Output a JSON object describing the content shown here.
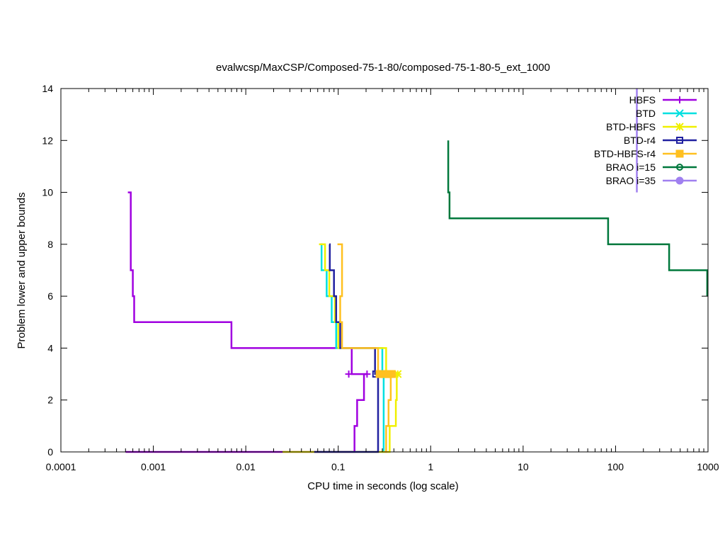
{
  "chart_data": {
    "type": "line",
    "title": "evalwcsp/MaxCSP/Composed-75-1-80/composed-75-1-80-5_ext_1000",
    "xlabel": "CPU time in seconds (log scale)",
    "ylabel": "Problem lower and upper bounds",
    "xscale": "log",
    "xlim": [
      0.0001,
      1000
    ],
    "ylim": [
      0,
      14
    ],
    "x_ticks": [
      {
        "value": 0.0001,
        "label": "0.0001"
      },
      {
        "value": 0.001,
        "label": "0.001"
      },
      {
        "value": 0.01,
        "label": "0.01"
      },
      {
        "value": 0.1,
        "label": "0.1"
      },
      {
        "value": 1,
        "label": "1"
      },
      {
        "value": 10,
        "label": "10"
      },
      {
        "value": 100,
        "label": "100"
      },
      {
        "value": 1000,
        "label": "1000"
      }
    ],
    "y_ticks": [
      {
        "value": 0,
        "label": "0"
      },
      {
        "value": 2,
        "label": "2"
      },
      {
        "value": 4,
        "label": "4"
      },
      {
        "value": 6,
        "label": "6"
      },
      {
        "value": 8,
        "label": "8"
      },
      {
        "value": 10,
        "label": "10"
      },
      {
        "value": 12,
        "label": "12"
      },
      {
        "value": 14,
        "label": "14"
      }
    ],
    "grid": false,
    "legend_position": "top-right",
    "series": [
      {
        "name": "HBFS",
        "color": "#a000e0",
        "marker": "plus",
        "upper": [
          [
            0.00053,
            10
          ],
          [
            0.00057,
            10
          ],
          [
            0.00057,
            7
          ],
          [
            0.0006,
            7
          ],
          [
            0.0006,
            6
          ],
          [
            0.00062,
            6
          ],
          [
            0.00062,
            5
          ],
          [
            0.007,
            5
          ],
          [
            0.007,
            4
          ],
          [
            0.14,
            4
          ],
          [
            0.14,
            3
          ],
          [
            0.205,
            3
          ]
        ],
        "lower": [
          [
            0.0005,
            0
          ],
          [
            0.15,
            0
          ],
          [
            0.15,
            1
          ],
          [
            0.16,
            1
          ],
          [
            0.16,
            2
          ],
          [
            0.19,
            2
          ],
          [
            0.19,
            3
          ],
          [
            0.205,
            3
          ]
        ],
        "markers": [
          [
            0.13,
            3
          ],
          [
            0.205,
            3
          ]
        ]
      },
      {
        "name": "BTD",
        "color": "#00e0e0",
        "marker": "cross",
        "upper": [
          [
            0.065,
            8
          ],
          [
            0.066,
            8
          ],
          [
            0.066,
            7
          ],
          [
            0.075,
            7
          ],
          [
            0.075,
            6
          ],
          [
            0.085,
            6
          ],
          [
            0.085,
            5
          ],
          [
            0.095,
            5
          ],
          [
            0.095,
            4
          ],
          [
            0.3,
            4
          ],
          [
            0.3,
            3
          ],
          [
            0.31,
            3
          ]
        ],
        "lower": [
          [
            0.3,
            0
          ],
          [
            0.31,
            0
          ],
          [
            0.31,
            3
          ]
        ],
        "markers": [
          [
            0.31,
            3
          ]
        ]
      },
      {
        "name": "BTD-HBFS",
        "color": "#f0f000",
        "marker": "star",
        "upper": [
          [
            0.062,
            8
          ],
          [
            0.072,
            8
          ],
          [
            0.072,
            7
          ],
          [
            0.08,
            7
          ],
          [
            0.08,
            6
          ],
          [
            0.092,
            6
          ],
          [
            0.092,
            5
          ],
          [
            0.1,
            5
          ],
          [
            0.1,
            4
          ],
          [
            0.33,
            4
          ],
          [
            0.33,
            3
          ],
          [
            0.44,
            3
          ]
        ],
        "lower": [
          [
            0.025,
            0
          ],
          [
            0.36,
            0
          ],
          [
            0.36,
            1
          ],
          [
            0.42,
            1
          ],
          [
            0.42,
            2
          ],
          [
            0.43,
            2
          ],
          [
            0.43,
            3
          ],
          [
            0.44,
            3
          ]
        ],
        "markers": [
          [
            0.44,
            3
          ]
        ]
      },
      {
        "name": "BTD-r4",
        "color": "#2020a0",
        "marker": "square",
        "upper": [
          [
            0.08,
            8
          ],
          [
            0.081,
            8
          ],
          [
            0.081,
            7
          ],
          [
            0.09,
            7
          ],
          [
            0.09,
            6
          ],
          [
            0.095,
            6
          ],
          [
            0.095,
            5
          ],
          [
            0.105,
            5
          ],
          [
            0.105,
            4
          ],
          [
            0.25,
            4
          ],
          [
            0.25,
            3
          ],
          [
            0.27,
            3
          ]
        ],
        "lower": [
          [
            0.055,
            0
          ],
          [
            0.27,
            0
          ],
          [
            0.27,
            3
          ]
        ],
        "markers": [
          [
            0.255,
            3
          ]
        ]
      },
      {
        "name": "BTD-HBFS-r4",
        "color": "#ffc020",
        "marker": "filled-square",
        "upper": [
          [
            0.098,
            8
          ],
          [
            0.11,
            8
          ],
          [
            0.11,
            6
          ],
          [
            0.105,
            6
          ],
          [
            0.105,
            5
          ],
          [
            0.11,
            5
          ],
          [
            0.11,
            4
          ],
          [
            0.27,
            4
          ],
          [
            0.27,
            3
          ],
          [
            0.38,
            3
          ]
        ],
        "lower": [
          [
            0.32,
            0
          ],
          [
            0.33,
            0
          ],
          [
            0.33,
            1
          ],
          [
            0.35,
            1
          ],
          [
            0.35,
            2
          ],
          [
            0.37,
            2
          ],
          [
            0.37,
            3
          ],
          [
            0.38,
            3
          ]
        ],
        "markers": [
          [
            0.28,
            3
          ],
          [
            0.3,
            3
          ],
          [
            0.32,
            3
          ],
          [
            0.34,
            3
          ],
          [
            0.36,
            3
          ],
          [
            0.38,
            3
          ]
        ]
      },
      {
        "name": "BRAO i=15",
        "color": "#00783c",
        "marker": "circle",
        "upper": [
          [
            1.55,
            12
          ],
          [
            1.55,
            10
          ],
          [
            1.6,
            10
          ],
          [
            1.6,
            9
          ],
          [
            83,
            9
          ],
          [
            83,
            8
          ],
          [
            380,
            8
          ],
          [
            380,
            7
          ],
          [
            980,
            7
          ],
          [
            980,
            6
          ]
        ],
        "lower": [],
        "markers": []
      },
      {
        "name": "BRAO i=35",
        "color": "#a080f0",
        "marker": "filled-circle",
        "upper": [
          [
            170,
            14
          ],
          [
            170,
            10
          ]
        ],
        "lower": [],
        "markers": []
      }
    ]
  }
}
